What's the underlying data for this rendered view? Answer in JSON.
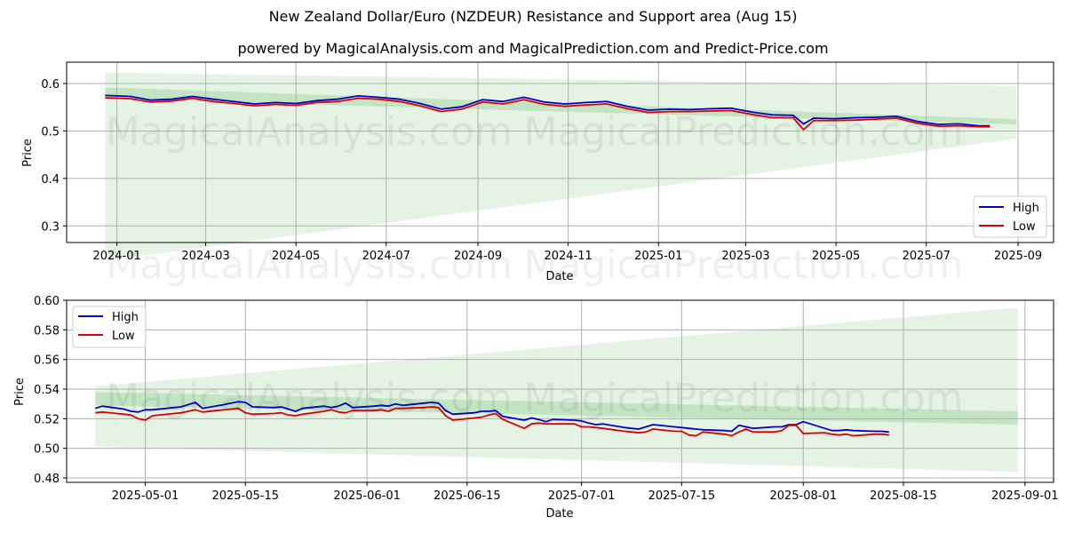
{
  "header": {
    "title": "New Zealand Dollar/Euro (NZDEUR) Resistance and Support area (Aug 15)",
    "subtitle": "powered by MagicalAnalysis.com and MagicalPrediction.com and Predict-Price.com"
  },
  "watermarks": [
    "MagicalAnalysis.com",
    "MagicalPrediction.com"
  ],
  "colors": {
    "high": "#0000cc",
    "low": "#dd0000",
    "band": "#2ca02c"
  },
  "chart_data": [
    {
      "type": "line",
      "xlabel": "Date",
      "ylabel": "Price",
      "ylim": [
        0.265,
        0.645
      ],
      "xlim": [
        "2023-11-28",
        "2025-09-25"
      ],
      "grid": true,
      "legend": "bottom-right",
      "x_ticks": [
        "2024-01",
        "2024-03",
        "2024-05",
        "2024-07",
        "2024-09",
        "2024-11",
        "2025-01",
        "2025-03",
        "2025-05",
        "2025-07",
        "2025-09"
      ],
      "y_ticks": [
        "0.3",
        "0.4",
        "0.5",
        "0.6"
      ],
      "bands": {
        "outer": {
          "x": [
            "2023-12-24",
            "2025-08-31"
          ],
          "upper": [
            0.623,
            0.595
          ],
          "lower": [
            0.227,
            0.484
          ]
        },
        "inner": {
          "x": [
            "2023-12-24",
            "2025-08-31"
          ],
          "upper": [
            0.592,
            0.525
          ],
          "lower": [
            0.568,
            0.514
          ]
        }
      },
      "series": [
        {
          "name": "High",
          "x": [
            "2023-12-24",
            "2024-01-10",
            "2024-01-24",
            "2024-02-07",
            "2024-02-21",
            "2024-03-06",
            "2024-03-20",
            "2024-04-03",
            "2024-04-17",
            "2024-05-01",
            "2024-05-15",
            "2024-05-29",
            "2024-06-12",
            "2024-06-26",
            "2024-07-10",
            "2024-07-24",
            "2024-08-07",
            "2024-08-21",
            "2024-09-04",
            "2024-09-18",
            "2024-10-02",
            "2024-10-16",
            "2024-10-30",
            "2024-11-13",
            "2024-11-27",
            "2024-12-11",
            "2024-12-25",
            "2025-01-08",
            "2025-01-22",
            "2025-02-05",
            "2025-02-19",
            "2025-03-05",
            "2025-03-19",
            "2025-04-02",
            "2025-04-09",
            "2025-04-16",
            "2025-04-30",
            "2025-05-14",
            "2025-05-28",
            "2025-06-11",
            "2025-06-25",
            "2025-07-09",
            "2025-07-23",
            "2025-08-06",
            "2025-08-13"
          ],
          "values": [
            0.575,
            0.573,
            0.565,
            0.567,
            0.573,
            0.567,
            0.562,
            0.557,
            0.56,
            0.558,
            0.564,
            0.567,
            0.574,
            0.571,
            0.567,
            0.558,
            0.546,
            0.551,
            0.566,
            0.562,
            0.571,
            0.561,
            0.557,
            0.56,
            0.562,
            0.552,
            0.544,
            0.546,
            0.545,
            0.547,
            0.548,
            0.54,
            0.534,
            0.533,
            0.515,
            0.527,
            0.526,
            0.528,
            0.529,
            0.531,
            0.52,
            0.514,
            0.515,
            0.511,
            0.511
          ]
        },
        {
          "name": "Low",
          "x": [
            "2023-12-24",
            "2024-01-10",
            "2024-01-24",
            "2024-02-07",
            "2024-02-21",
            "2024-03-06",
            "2024-03-20",
            "2024-04-03",
            "2024-04-17",
            "2024-05-01",
            "2024-05-15",
            "2024-05-29",
            "2024-06-12",
            "2024-06-26",
            "2024-07-10",
            "2024-07-24",
            "2024-08-07",
            "2024-08-21",
            "2024-09-04",
            "2024-09-18",
            "2024-10-02",
            "2024-10-16",
            "2024-10-30",
            "2024-11-13",
            "2024-11-27",
            "2024-12-11",
            "2024-12-25",
            "2025-01-08",
            "2025-01-22",
            "2025-02-05",
            "2025-02-19",
            "2025-03-05",
            "2025-03-19",
            "2025-04-02",
            "2025-04-09",
            "2025-04-16",
            "2025-04-30",
            "2025-05-14",
            "2025-05-28",
            "2025-06-11",
            "2025-06-25",
            "2025-07-09",
            "2025-07-23",
            "2025-08-06",
            "2025-08-13"
          ],
          "values": [
            0.57,
            0.568,
            0.561,
            0.563,
            0.569,
            0.562,
            0.558,
            0.553,
            0.556,
            0.554,
            0.56,
            0.562,
            0.569,
            0.567,
            0.562,
            0.553,
            0.541,
            0.546,
            0.561,
            0.557,
            0.566,
            0.556,
            0.552,
            0.555,
            0.557,
            0.547,
            0.539,
            0.541,
            0.541,
            0.542,
            0.543,
            0.535,
            0.528,
            0.528,
            0.503,
            0.522,
            0.522,
            0.523,
            0.525,
            0.527,
            0.516,
            0.51,
            0.511,
            0.509,
            0.509
          ]
        }
      ]
    },
    {
      "type": "line",
      "xlabel": "Date",
      "ylabel": "Price",
      "ylim": [
        0.477,
        0.6
      ],
      "xlim": [
        "2025-04-20",
        "2025-09-05"
      ],
      "grid": true,
      "legend": "top-left",
      "x_ticks": [
        "2025-05-01",
        "2025-05-15",
        "2025-06-01",
        "2025-06-15",
        "2025-07-01",
        "2025-07-15",
        "2025-08-01",
        "2025-08-15",
        "2025-09-01"
      ],
      "y_ticks": [
        "0.48",
        "0.50",
        "0.52",
        "0.54",
        "0.56",
        "0.58",
        "0.60"
      ],
      "bands": {
        "outer": {
          "x": [
            "2025-04-24",
            "2025-08-31"
          ],
          "upper": [
            0.542,
            0.595
          ],
          "lower": [
            0.501,
            0.484
          ]
        },
        "inner": {
          "x": [
            "2025-04-24",
            "2025-08-31"
          ],
          "upper": [
            0.538,
            0.525
          ],
          "lower": [
            0.529,
            0.516
          ]
        }
      },
      "series": [
        {
          "name": "High",
          "x": [
            "2025-04-24",
            "2025-04-25",
            "2025-04-28",
            "2025-04-29",
            "2025-04-30",
            "2025-05-01",
            "2025-05-02",
            "2025-05-05",
            "2025-05-06",
            "2025-05-07",
            "2025-05-08",
            "2025-05-09",
            "2025-05-12",
            "2025-05-13",
            "2025-05-14",
            "2025-05-15",
            "2025-05-16",
            "2025-05-19",
            "2025-05-20",
            "2025-05-21",
            "2025-05-22",
            "2025-05-23",
            "2025-05-26",
            "2025-05-27",
            "2025-05-28",
            "2025-05-29",
            "2025-05-30",
            "2025-06-02",
            "2025-06-03",
            "2025-06-04",
            "2025-06-05",
            "2025-06-06",
            "2025-06-09",
            "2025-06-10",
            "2025-06-11",
            "2025-06-12",
            "2025-06-13",
            "2025-06-16",
            "2025-06-17",
            "2025-06-18",
            "2025-06-19",
            "2025-06-20",
            "2025-06-23",
            "2025-06-24",
            "2025-06-25",
            "2025-06-26",
            "2025-06-27",
            "2025-06-30",
            "2025-07-01",
            "2025-07-02",
            "2025-07-03",
            "2025-07-04",
            "2025-07-07",
            "2025-07-08",
            "2025-07-09",
            "2025-07-10",
            "2025-07-11",
            "2025-07-14",
            "2025-07-15",
            "2025-07-16",
            "2025-07-17",
            "2025-07-18",
            "2025-07-21",
            "2025-07-22",
            "2025-07-23",
            "2025-07-24",
            "2025-07-25",
            "2025-07-28",
            "2025-07-29",
            "2025-07-30",
            "2025-07-31",
            "2025-08-01",
            "2025-08-04",
            "2025-08-05",
            "2025-08-06",
            "2025-08-07",
            "2025-08-08",
            "2025-08-11",
            "2025-08-12",
            "2025-08-13"
          ],
          "values": [
            0.527,
            0.5285,
            0.5265,
            0.525,
            0.5245,
            0.526,
            0.526,
            0.5275,
            0.528,
            0.5295,
            0.531,
            0.527,
            0.5295,
            0.5305,
            0.5315,
            0.531,
            0.528,
            0.5275,
            0.528,
            0.5265,
            0.525,
            0.527,
            0.5285,
            0.5275,
            0.5285,
            0.5305,
            0.5275,
            0.5285,
            0.529,
            0.5285,
            0.53,
            0.529,
            0.5305,
            0.531,
            0.5305,
            0.5255,
            0.523,
            0.524,
            0.525,
            0.525,
            0.5255,
            0.5215,
            0.519,
            0.5205,
            0.5195,
            0.518,
            0.5195,
            0.519,
            0.5185,
            0.517,
            0.516,
            0.5165,
            0.514,
            0.5135,
            0.513,
            0.5145,
            0.516,
            0.5145,
            0.514,
            0.5135,
            0.513,
            0.5125,
            0.512,
            0.5115,
            0.5155,
            0.5145,
            0.5135,
            0.5145,
            0.5145,
            0.516,
            0.516,
            0.518,
            0.5135,
            0.512,
            0.512,
            0.5125,
            0.512,
            0.5115,
            0.5115,
            0.511
          ]
        },
        {
          "name": "Low",
          "x": [
            "2025-04-24",
            "2025-04-25",
            "2025-04-28",
            "2025-04-29",
            "2025-04-30",
            "2025-05-01",
            "2025-05-02",
            "2025-05-05",
            "2025-05-06",
            "2025-05-07",
            "2025-05-08",
            "2025-05-09",
            "2025-05-12",
            "2025-05-13",
            "2025-05-14",
            "2025-05-15",
            "2025-05-16",
            "2025-05-19",
            "2025-05-20",
            "2025-05-21",
            "2025-05-22",
            "2025-05-23",
            "2025-05-26",
            "2025-05-27",
            "2025-05-28",
            "2025-05-29",
            "2025-05-30",
            "2025-06-02",
            "2025-06-03",
            "2025-06-04",
            "2025-06-05",
            "2025-06-06",
            "2025-06-09",
            "2025-06-10",
            "2025-06-11",
            "2025-06-12",
            "2025-06-13",
            "2025-06-16",
            "2025-06-17",
            "2025-06-18",
            "2025-06-19",
            "2025-06-20",
            "2025-06-23",
            "2025-06-24",
            "2025-06-25",
            "2025-06-26",
            "2025-06-27",
            "2025-06-30",
            "2025-07-01",
            "2025-07-02",
            "2025-07-03",
            "2025-07-04",
            "2025-07-07",
            "2025-07-08",
            "2025-07-09",
            "2025-07-10",
            "2025-07-11",
            "2025-07-14",
            "2025-07-15",
            "2025-07-16",
            "2025-07-17",
            "2025-07-18",
            "2025-07-21",
            "2025-07-22",
            "2025-07-23",
            "2025-07-24",
            "2025-07-25",
            "2025-07-28",
            "2025-07-29",
            "2025-07-30",
            "2025-07-31",
            "2025-08-01",
            "2025-08-04",
            "2025-08-05",
            "2025-08-06",
            "2025-08-07",
            "2025-08-08",
            "2025-08-11",
            "2025-08-12",
            "2025-08-13"
          ],
          "values": [
            0.524,
            0.5245,
            0.523,
            0.5225,
            0.52,
            0.519,
            0.522,
            0.5235,
            0.524,
            0.525,
            0.526,
            0.5245,
            0.526,
            0.5265,
            0.527,
            0.524,
            0.523,
            0.5235,
            0.524,
            0.5225,
            0.522,
            0.523,
            0.525,
            0.526,
            0.5245,
            0.524,
            0.5255,
            0.5255,
            0.526,
            0.525,
            0.527,
            0.527,
            0.5275,
            0.528,
            0.5275,
            0.522,
            0.519,
            0.5205,
            0.521,
            0.5225,
            0.5235,
            0.5195,
            0.5135,
            0.5165,
            0.517,
            0.5165,
            0.5165,
            0.5165,
            0.5145,
            0.5145,
            0.514,
            0.5135,
            0.5115,
            0.511,
            0.5105,
            0.511,
            0.513,
            0.5115,
            0.5115,
            0.509,
            0.5085,
            0.511,
            0.5095,
            0.5085,
            0.511,
            0.513,
            0.511,
            0.511,
            0.512,
            0.5155,
            0.5155,
            0.51,
            0.5105,
            0.5095,
            0.509,
            0.5095,
            0.5085,
            0.5095,
            0.5095,
            0.509
          ]
        }
      ]
    }
  ]
}
